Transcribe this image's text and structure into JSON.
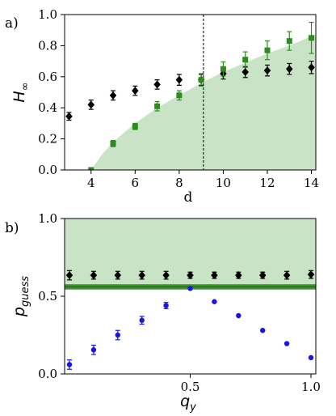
{
  "chart_data": [
    {
      "type": "scatter",
      "panel_label": "a)",
      "xlabel": "d",
      "ylabel": "H",
      "ylabel_sub": "∞",
      "xlim": [
        2.8,
        14.2
      ],
      "ylim": [
        0.0,
        1.0
      ],
      "xticks": [
        "4",
        "6",
        "8",
        "10",
        "12",
        "14"
      ],
      "yticks": [
        "0.0",
        "0.2",
        "0.4",
        "0.6",
        "0.8",
        "1.0"
      ],
      "vline_x": 9.1,
      "shaded_region": {
        "color": "#c8e3c6",
        "upper_curve": [
          [
            4,
            0.0
          ],
          [
            4.5,
            0.1
          ],
          [
            5,
            0.18
          ],
          [
            6,
            0.3
          ],
          [
            7,
            0.4
          ],
          [
            8,
            0.48
          ],
          [
            9,
            0.56
          ],
          [
            10,
            0.63
          ],
          [
            11,
            0.69
          ],
          [
            12,
            0.75
          ],
          [
            13,
            0.8
          ],
          [
            14,
            0.86
          ],
          [
            14.2,
            0.87
          ]
        ]
      },
      "series": [
        {
          "marker": "diamond",
          "color": "#000000",
          "x": [
            3,
            4,
            5,
            6,
            7,
            8,
            9,
            10,
            11,
            12,
            13,
            14
          ],
          "y": [
            0.345,
            0.42,
            0.48,
            0.51,
            0.55,
            0.58,
            0.58,
            0.62,
            0.63,
            0.64,
            0.65,
            0.66
          ],
          "err": [
            0.025,
            0.03,
            0.03,
            0.03,
            0.03,
            0.035,
            0.035,
            0.035,
            0.035,
            0.035,
            0.035,
            0.04
          ]
        },
        {
          "marker": "square",
          "color": "#2e8b1e",
          "x": [
            4,
            5,
            6,
            7,
            8,
            9,
            10,
            11,
            12,
            13,
            14
          ],
          "y": [
            0.0,
            0.17,
            0.28,
            0.41,
            0.48,
            0.58,
            0.65,
            0.71,
            0.77,
            0.83,
            0.85
          ],
          "err": [
            0.01,
            0.02,
            0.02,
            0.03,
            0.03,
            0.04,
            0.045,
            0.05,
            0.06,
            0.06,
            0.1
          ]
        }
      ]
    },
    {
      "type": "scatter",
      "panel_label": "b)",
      "xlabel": "q",
      "xlabel_sub": "y",
      "ylabel": "p",
      "ylabel_sub": "guess",
      "xlim": [
        -0.02,
        1.02
      ],
      "ylim": [
        0.0,
        1.0
      ],
      "xticks": [
        "0.5",
        "1.0"
      ],
      "yticks": [
        "0.0",
        "0.5",
        "1.0"
      ],
      "shaded_region": {
        "color": "#c8e3c6",
        "ymin": 0.56,
        "ymax": 1.0
      },
      "band": {
        "color": "#2e8b1e",
        "y": 0.56,
        "half_width": 0.017
      },
      "series": [
        {
          "marker": "diamond",
          "color": "#000000",
          "x": [
            0.0,
            0.1,
            0.2,
            0.3,
            0.4,
            0.5,
            0.6,
            0.7,
            0.8,
            0.9,
            1.0
          ],
          "y": [
            0.635,
            0.635,
            0.635,
            0.635,
            0.635,
            0.635,
            0.635,
            0.635,
            0.635,
            0.635,
            0.64
          ],
          "err": [
            0.03,
            0.025,
            0.025,
            0.025,
            0.025,
            0.02,
            0.02,
            0.02,
            0.02,
            0.025,
            0.025
          ]
        },
        {
          "marker": "circle",
          "color": "#1515e6",
          "x": [
            0.0,
            0.1,
            0.2,
            0.3,
            0.4,
            0.5,
            0.6,
            0.7,
            0.8,
            0.9,
            1.0
          ],
          "y": [
            0.06,
            0.155,
            0.25,
            0.345,
            0.44,
            0.55,
            0.465,
            0.375,
            0.28,
            0.195,
            0.105
          ],
          "err": [
            0.03,
            0.03,
            0.03,
            0.025,
            0.02,
            0,
            0,
            0,
            0,
            0,
            0
          ]
        }
      ]
    }
  ]
}
